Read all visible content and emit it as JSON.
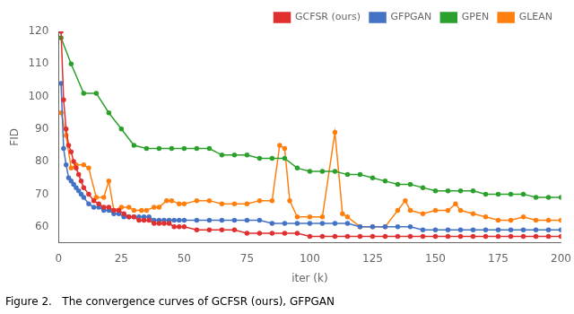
{
  "chart_data": {
    "type": "line",
    "xlabel": "iter (k)",
    "ylabel": "FID",
    "caption": "Figure 2.   The convergence curves of GCFSR (ours), GFPGAN",
    "xlim": [
      0,
      200
    ],
    "ylim": [
      55,
      120
    ],
    "xticks": [
      0,
      25,
      50,
      75,
      100,
      125,
      150,
      175,
      200
    ],
    "yticks": [
      60,
      70,
      80,
      90,
      100,
      110,
      120
    ],
    "grid": false,
    "legend": "upper right",
    "marker": "circle",
    "series": [
      {
        "name": "GCFSR (ours)",
        "color": "#e03030",
        "x": [
          1,
          2,
          3,
          4,
          5,
          6,
          7,
          8,
          9,
          10,
          12,
          14,
          16,
          18,
          20,
          22,
          24,
          26,
          28,
          30,
          32,
          34,
          36,
          38,
          40,
          42,
          44,
          46,
          48,
          50,
          55,
          60,
          65,
          70,
          75,
          80,
          85,
          90,
          95,
          100,
          105,
          110,
          115,
          120,
          125,
          130,
          135,
          140,
          145,
          150,
          155,
          160,
          165,
          170,
          175,
          180,
          185,
          190,
          195,
          200
        ],
        "values": [
          120,
          99,
          90,
          85,
          83,
          80,
          78,
          76,
          74,
          72,
          70,
          68,
          67,
          66,
          66,
          65,
          65,
          64,
          63,
          63,
          62,
          62,
          62,
          61,
          61,
          61,
          61,
          60,
          60,
          60,
          59,
          59,
          59,
          59,
          58,
          58,
          58,
          58,
          58,
          57,
          57,
          57,
          57,
          57,
          57,
          57,
          57,
          57,
          57,
          57,
          57,
          57,
          57,
          57,
          57,
          57,
          57,
          57,
          57,
          57
        ]
      },
      {
        "name": "GFPGAN",
        "color": "#4472c4",
        "x": [
          1,
          2,
          3,
          4,
          5,
          6,
          7,
          8,
          9,
          10,
          12,
          14,
          16,
          18,
          20,
          22,
          24,
          26,
          28,
          30,
          32,
          34,
          36,
          38,
          40,
          42,
          44,
          46,
          48,
          50,
          55,
          60,
          65,
          70,
          75,
          80,
          85,
          90,
          95,
          100,
          105,
          110,
          115,
          120,
          125,
          130,
          135,
          140,
          145,
          150,
          155,
          160,
          165,
          170,
          175,
          180,
          185,
          190,
          195,
          200
        ],
        "values": [
          104,
          84,
          79,
          75,
          74,
          73,
          72,
          71,
          70,
          69,
          67,
          66,
          66,
          65,
          65,
          64,
          64,
          63,
          63,
          63,
          63,
          63,
          63,
          62,
          62,
          62,
          62,
          62,
          62,
          62,
          62,
          62,
          62,
          62,
          62,
          62,
          61,
          61,
          61,
          61,
          61,
          61,
          61,
          60,
          60,
          60,
          60,
          60,
          59,
          59,
          59,
          59,
          59,
          59,
          59,
          59,
          59,
          59,
          59,
          59
        ]
      },
      {
        "name": "GPEN",
        "color": "#2ca02c",
        "x": [
          1,
          5,
          10,
          15,
          20,
          25,
          30,
          35,
          40,
          45,
          50,
          55,
          60,
          65,
          70,
          75,
          80,
          85,
          90,
          95,
          100,
          105,
          110,
          115,
          120,
          125,
          130,
          135,
          140,
          145,
          150,
          155,
          160,
          165,
          170,
          175,
          180,
          185,
          190,
          195,
          200
        ],
        "values": [
          118,
          110,
          101,
          101,
          95,
          90,
          85,
          84,
          84,
          84,
          84,
          84,
          84,
          82,
          82,
          82,
          81,
          81,
          81,
          78,
          77,
          77,
          77,
          76,
          76,
          75,
          74,
          73,
          73,
          72,
          71,
          71,
          71,
          71,
          70,
          70,
          70,
          70,
          69,
          69,
          69
        ]
      },
      {
        "name": "GLEAN",
        "color": "#ff7f0e",
        "x": [
          1,
          3,
          5,
          7,
          10,
          12,
          15,
          18,
          20,
          22,
          25,
          28,
          30,
          33,
          35,
          38,
          40,
          43,
          45,
          48,
          50,
          55,
          60,
          65,
          70,
          75,
          80,
          85,
          88,
          90,
          92,
          95,
          100,
          105,
          110,
          113,
          115,
          120,
          125,
          130,
          135,
          138,
          140,
          145,
          150,
          155,
          158,
          160,
          165,
          170,
          175,
          180,
          185,
          190,
          195,
          200
        ],
        "values": [
          95,
          88,
          78,
          79,
          79,
          78,
          69,
          69,
          74,
          65,
          66,
          66,
          65,
          65,
          65,
          66,
          66,
          68,
          68,
          67,
          67,
          68,
          68,
          67,
          67,
          67,
          68,
          68,
          85,
          84,
          68,
          63,
          63,
          63,
          89,
          64,
          63,
          60,
          60,
          60,
          65,
          68,
          65,
          64,
          65,
          65,
          67,
          65,
          64,
          63,
          62,
          62,
          63,
          62,
          62,
          62
        ]
      }
    ]
  }
}
